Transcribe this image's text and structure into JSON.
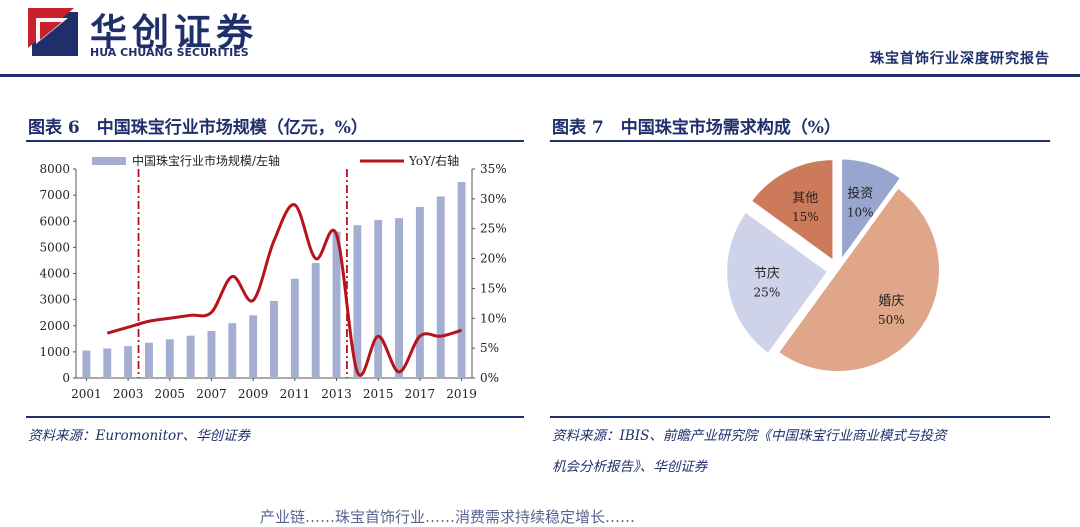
{
  "header": {
    "logo_cn": "华创证券",
    "logo_en": "HUA CHUANG SECURITIES",
    "report_title": "珠宝首饰行业深度研究报告",
    "colors": {
      "brand": "#1f2f6b",
      "logo_red": "#c8202c"
    }
  },
  "figures": {
    "fig6": {
      "title": "图表 6　中国珠宝行业市场规模（亿元，%）",
      "source": "资料来源：Euromonitor、华创证券"
    },
    "fig7": {
      "title": "图表 7　中国珠宝市场需求构成（%）",
      "source_line1": "资料来源：IBIS、前瞻产业研究院《中国珠宝行业商业模式与投资",
      "source_line2": "机会分析报告》、华创证券"
    }
  },
  "body_fragment": "产业链……珠宝首饰行业……消费需求持续稳定增长……",
  "chart_data": [
    {
      "type": "bar",
      "title": "中国珠宝行业市场规模（亿元，%）",
      "categories": [
        "2001",
        "2002",
        "2003",
        "2004",
        "2005",
        "2006",
        "2007",
        "2008",
        "2009",
        "2010",
        "2011",
        "2012",
        "2013",
        "2014",
        "2015",
        "2016",
        "2017",
        "2018",
        "2019"
      ],
      "x_tick_labels": [
        "2001",
        "2003",
        "2005",
        "2007",
        "2009",
        "2011",
        "2013",
        "2015",
        "2017",
        "2019"
      ],
      "series": [
        {
          "name": "中国珠宝行业市场规模/左轴",
          "type": "bar",
          "axis": "left",
          "color": "#a4aed0",
          "values": [
            1050,
            1130,
            1220,
            1350,
            1480,
            1620,
            1800,
            2100,
            2400,
            2950,
            3800,
            4400,
            5600,
            5850,
            6050,
            6120,
            6550,
            6950,
            7500
          ]
        },
        {
          "name": "YoY/右轴",
          "type": "line",
          "axis": "right",
          "color": "#b8121c",
          "values": [
            null,
            7.5,
            8.5,
            9.5,
            10.0,
            10.5,
            11.0,
            17.0,
            13.0,
            23.0,
            29.0,
            20.0,
            24.0,
            1.0,
            7.0,
            1.0,
            7.0,
            7.0,
            8.0
          ]
        }
      ],
      "left_axis": {
        "ylim": [
          0,
          8000
        ],
        "ticks": [
          0,
          1000,
          2000,
          3000,
          4000,
          5000,
          6000,
          7000,
          8000
        ]
      },
      "right_axis": {
        "ylim": [
          0,
          35
        ],
        "ticks": [
          "0%",
          "5%",
          "10%",
          "15%",
          "20%",
          "25%",
          "30%",
          "35%"
        ]
      },
      "vlines": [
        {
          "x": "2003"
        },
        {
          "x": "2013"
        }
      ],
      "legend": "top"
    },
    {
      "type": "pie",
      "title": "中国珠宝市场需求构成（%）",
      "slices": [
        {
          "label": "投资",
          "value": 10,
          "text": "10%",
          "color": "#98a5cf",
          "exploded": true
        },
        {
          "label": "婚庆",
          "value": 50,
          "text": "50%",
          "color": "#dfa68a",
          "exploded": false
        },
        {
          "label": "节庆",
          "value": 25,
          "text": "25%",
          "color": "#cfd3ea",
          "exploded": true
        },
        {
          "label": "其他",
          "value": 15,
          "text": "15%",
          "color": "#cd7a5b",
          "exploded": true
        }
      ]
    }
  ]
}
